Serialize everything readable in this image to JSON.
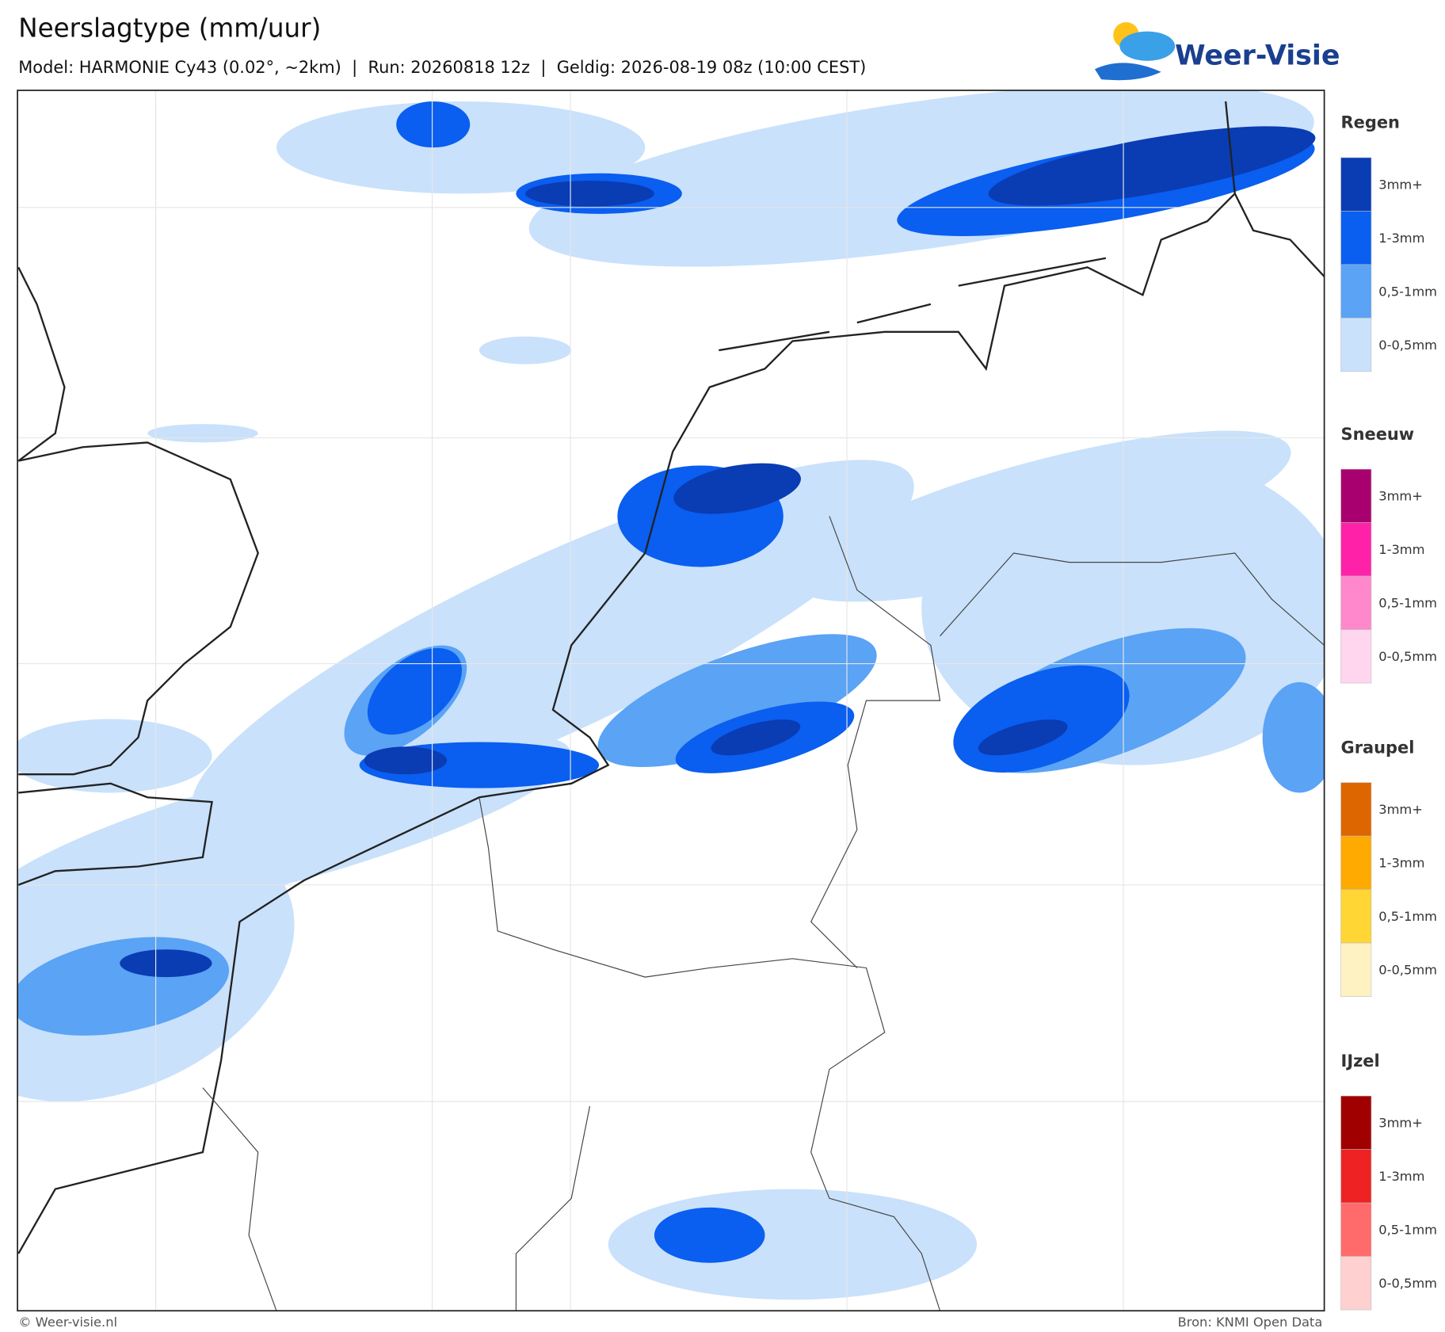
{
  "header": {
    "title": "Neerslagtype (mm/uur)",
    "subtitle": "Model: HARMONIE Cy43 (0.02°, ~2km)  |  Run: 20260818 12z  |  Geldig: 2026-08-19 08z (10:00 CEST)"
  },
  "logo": {
    "text": "Weer-Visie"
  },
  "legend": [
    {
      "title": "Regen",
      "items": [
        {
          "label": "3mm+",
          "color": "#0a3cb4"
        },
        {
          "label": "1-3mm",
          "color": "#0a5ef0"
        },
        {
          "label": "0,5-1mm",
          "color": "#5aa3f5"
        },
        {
          "label": "0-0,5mm",
          "color": "#c9e1fb"
        }
      ]
    },
    {
      "title": "Sneeuw",
      "items": [
        {
          "label": "3mm+",
          "color": "#a8006e"
        },
        {
          "label": "1-3mm",
          "color": "#ff22a8"
        },
        {
          "label": "0,5-1mm",
          "color": "#ff88cc"
        },
        {
          "label": "0-0,5mm",
          "color": "#ffd6ee"
        }
      ]
    },
    {
      "title": "Graupel",
      "items": [
        {
          "label": "3mm+",
          "color": "#dd6600"
        },
        {
          "label": "1-3mm",
          "color": "#ffaa00"
        },
        {
          "label": "0,5-1mm",
          "color": "#ffd633"
        },
        {
          "label": "0-0,5mm",
          "color": "#fff2c2"
        }
      ]
    },
    {
      "title": "IJzel",
      "items": [
        {
          "label": "3mm+",
          "color": "#a00000"
        },
        {
          "label": "1-3mm",
          "color": "#ee2222"
        },
        {
          "label": "0,5-1mm",
          "color": "#ff6b6b"
        },
        {
          "label": "0-0,5mm",
          "color": "#ffd0d0"
        }
      ]
    }
  ],
  "footer": {
    "credit": "© Weer-visie.nl",
    "source": "Bron: KNMI Open Data"
  }
}
